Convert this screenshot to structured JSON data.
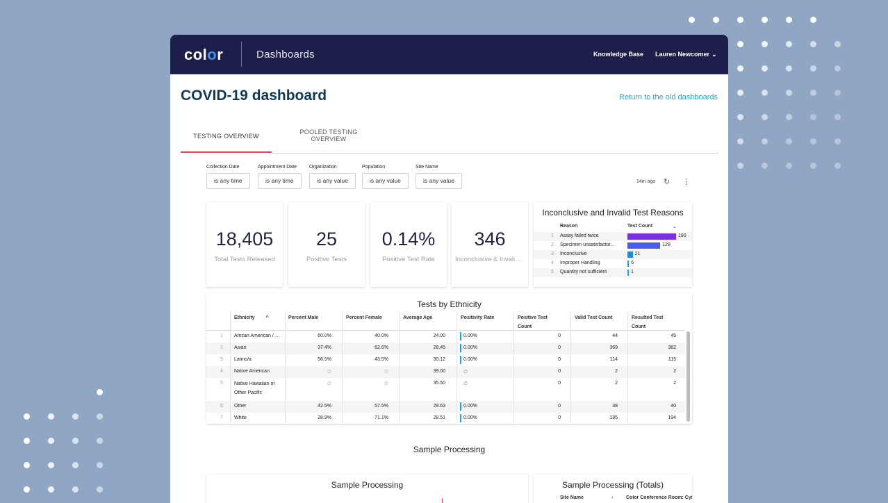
{
  "header": {
    "logo_text": "color",
    "app_title": "Dashboards",
    "knowledge_base": "Knowledge Base",
    "user_name": "Lauren Newcomer"
  },
  "page": {
    "title": "COVID-19 dashboard",
    "return_link": "Return to the old dashboards"
  },
  "tabs": [
    {
      "label": "TESTING OVERVIEW",
      "active": true
    },
    {
      "label_line1": "POOLED TESTING",
      "label_line2": "OVERVIEW",
      "active": false
    }
  ],
  "filters": [
    {
      "label": "Collection Date",
      "value": "is any time"
    },
    {
      "label": "Appointment Date",
      "value": "is any time"
    },
    {
      "label": "Organization",
      "value": "is any value"
    },
    {
      "label": "Population",
      "value": "is any value"
    },
    {
      "label": "Site Name",
      "value": "is any value"
    }
  ],
  "toolbar": {
    "updated": "14m ago"
  },
  "kpis": [
    {
      "value": "18,405",
      "label": "Total Tests Released"
    },
    {
      "value": "25",
      "label": "Positive Tests"
    },
    {
      "value": "0.14%",
      "label": "Positive Test Rate"
    },
    {
      "value": "346",
      "label": "Inconclusive & Invalid Tests"
    }
  ],
  "reasons": {
    "title": "Inconclusive and Invalid Test Reasons",
    "col_reason": "Reason",
    "col_count": "Test Count",
    "rows": [
      {
        "n": "1",
        "reason": "Assay failed twice",
        "count": 190,
        "color": "#7b2fe0"
      },
      {
        "n": "2",
        "reason": "Specimen unsatisfactor...",
        "count": 128,
        "color": "#4a5cf0"
      },
      {
        "n": "3",
        "reason": "Inconclusive",
        "count": 21,
        "color": "#1a8ae6"
      },
      {
        "n": "4",
        "reason": "Improper Handling",
        "count": 6,
        "color": "#1aa0ea"
      },
      {
        "n": "5",
        "reason": "Quantity not sufficient",
        "count": 1,
        "color": "#1aa0ea"
      }
    ]
  },
  "ethnicity": {
    "title": "Tests by Ethnicity",
    "headers": {
      "ethnicity": "Ethnicity",
      "pct_male": "Percent Male",
      "pct_female": "Percent Female",
      "avg_age": "Average Age",
      "positivity": "Positivity Rate",
      "pos_count_1": "Positive Test",
      "pos_count_2": "Count",
      "valid": "Valid Test Count",
      "resulted_1": "Resulted Test",
      "resulted_2": "Count"
    },
    "rows": [
      {
        "n": "1",
        "eth": "African American / Bl...",
        "male": "60.0%",
        "female": "40.0%",
        "age": "24.00",
        "rate": "0.00%",
        "pos": "0",
        "valid": "44",
        "resulted": "45"
      },
      {
        "n": "2",
        "eth": "Asian",
        "male": "37.4%",
        "female": "62.6%",
        "age": "28.45",
        "rate": "0.00%",
        "pos": "0",
        "valid": "369",
        "resulted": "382"
      },
      {
        "n": "3",
        "eth": "Latino/a",
        "male": "56.5%",
        "female": "43.5%",
        "age": "30.12",
        "rate": "0.00%",
        "pos": "0",
        "valid": "114",
        "resulted": "115"
      },
      {
        "n": "4",
        "eth": "Native American",
        "male": "∅",
        "female": "∅",
        "age": "39.00",
        "rate": "∅",
        "pos": "0",
        "valid": "2",
        "resulted": "2"
      },
      {
        "n": "5",
        "eth_line1": "Native Hawaiian or",
        "eth_line2": "Other Pacific",
        "male": "∅",
        "female": "∅",
        "age": "35.50",
        "rate": "∅",
        "pos": "0",
        "valid": "2",
        "resulted": "2"
      },
      {
        "n": "6",
        "eth": "Other",
        "male": "42.5%",
        "female": "57.5%",
        "age": "29.63",
        "rate": "0.00%",
        "pos": "0",
        "valid": "38",
        "resulted": "40"
      },
      {
        "n": "7",
        "eth": "White",
        "male": "28.9%",
        "female": "71.1%",
        "age": "28.51",
        "rate": "0.00%",
        "pos": "0",
        "valid": "185",
        "resulted": "194"
      }
    ]
  },
  "sample_processing": {
    "section_title": "Sample Processing",
    "chart_title": "Sample Processing",
    "totals_title": "Sample Processing (Totals)",
    "totals_col1": "Site Name",
    "totals_col2": "Color Conference Room: Cyt"
  }
}
